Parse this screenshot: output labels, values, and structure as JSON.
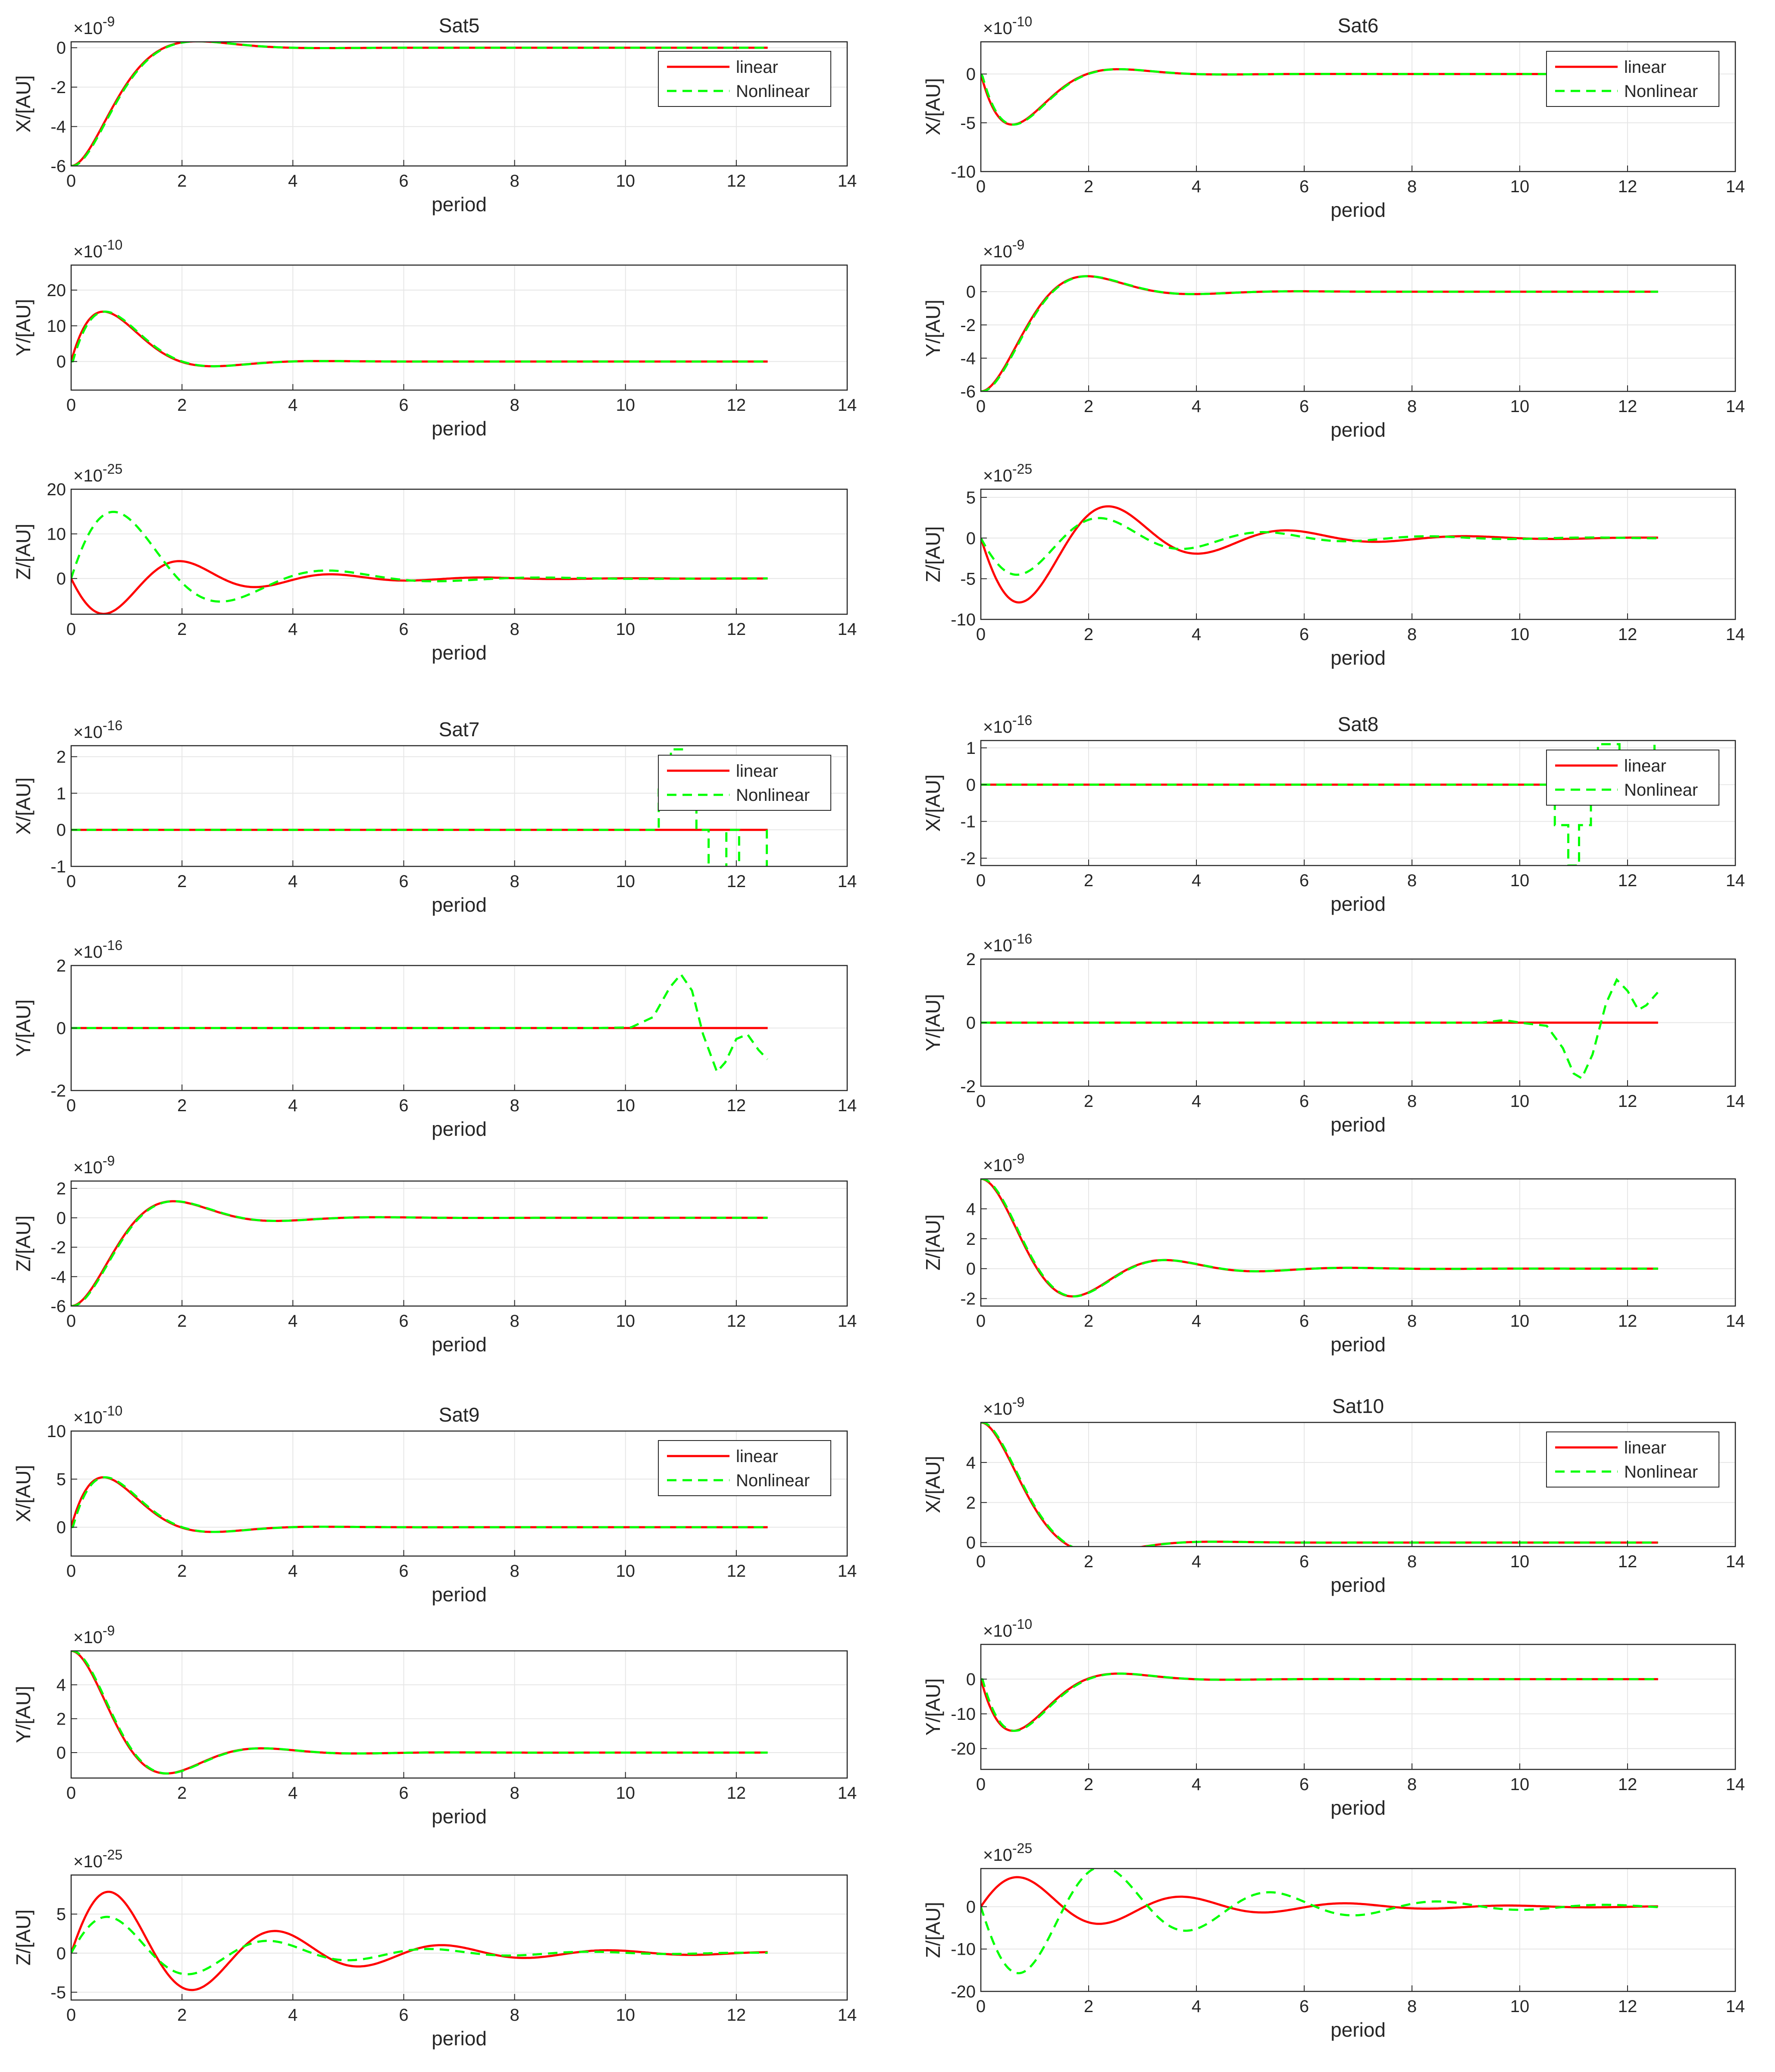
{
  "figure": {
    "xlabel": "period",
    "legend": {
      "linear": "linear",
      "nonlinear": "Nonlinear"
    },
    "colors": {
      "linear": "#ff0000",
      "nonlinear": "#00ff00",
      "axis": "#262626",
      "grid": "#e6e6e6"
    }
  },
  "chart_data": [
    {
      "id": "sat5-x",
      "type": "line",
      "title": "Sat5",
      "ylabel": "X/[AU]",
      "exponent": "-9",
      "xlim": [
        0,
        14
      ],
      "ylim": [
        -6,
        0.3
      ],
      "xticks": [
        0,
        2,
        4,
        6,
        8,
        10,
        12,
        14
      ],
      "yticks": [
        -6,
        -4,
        -2,
        0
      ],
      "legend": "top-right",
      "linear": {
        "kind": "damped",
        "A": 6,
        "omega": 1.88,
        "zeta": 0.68,
        "init": "-cos",
        "scale": 1,
        "tend": 12.566
      },
      "nonlinear": {
        "kind": "damped",
        "A": 6,
        "omega": 1.88,
        "zeta": 0.68,
        "init": "-cos",
        "scale": 1,
        "shift": 0.02,
        "tend": 12.566
      }
    },
    {
      "id": "sat5-y",
      "type": "line",
      "title": "",
      "ylabel": "Y/[AU]",
      "exponent": "-10",
      "xlim": [
        0,
        14
      ],
      "ylim": [
        -8,
        27
      ],
      "xticks": [
        0,
        2,
        4,
        6,
        8,
        10,
        12,
        14
      ],
      "yticks": [
        0,
        10,
        20
      ],
      "linear": {
        "kind": "damped",
        "A": 35,
        "omega": 1.99,
        "zeta": 0.6,
        "init": "sin",
        "scale": 1,
        "tend": 12.566
      },
      "nonlinear": {
        "kind": "damped",
        "A": 35,
        "omega": 1.99,
        "zeta": 0.6,
        "init": "sin",
        "scale": 1,
        "shift": 0.03,
        "tend": 12.566
      }
    },
    {
      "id": "sat5-z",
      "type": "line",
      "title": "",
      "ylabel": "Z/[AU]",
      "exponent": "-25",
      "xlim": [
        0,
        14
      ],
      "ylim": [
        -8,
        20
      ],
      "xticks": [
        0,
        2,
        4,
        6,
        8,
        10,
        12,
        14
      ],
      "yticks": [
        0,
        10,
        20
      ],
      "linear": {
        "kind": "damped",
        "A": 11,
        "omega": 2.36,
        "zeta": 0.22,
        "init": "-sin",
        "scale": 1,
        "tend": 12.566
      },
      "nonlinear": {
        "kind": "damped",
        "A": 24,
        "omega": 1.72,
        "zeta": 0.32,
        "init": "sin",
        "scale": 1,
        "tend": 12.566
      }
    },
    {
      "id": "sat6-x",
      "type": "line",
      "title": "Sat6",
      "ylabel": "X/[AU]",
      "exponent": "-10",
      "xlim": [
        0,
        14
      ],
      "ylim": [
        -10,
        3.3
      ],
      "xticks": [
        0,
        2,
        4,
        6,
        8,
        10,
        12,
        14
      ],
      "yticks": [
        -10,
        -5,
        0
      ],
      "legend": "top-right",
      "linear": {
        "kind": "damped",
        "A": 13,
        "omega": 1.99,
        "zeta": 0.6,
        "init": "-sin",
        "scale": 1,
        "tend": 12.566
      },
      "nonlinear": {
        "kind": "damped",
        "A": 13,
        "omega": 1.99,
        "zeta": 0.6,
        "init": "-sin",
        "scale": 1,
        "shift": 0.02,
        "tend": 12.566
      }
    },
    {
      "id": "sat6-y",
      "type": "line",
      "title": "",
      "ylabel": "Y/[AU]",
      "exponent": "-9",
      "xlim": [
        0,
        14
      ],
      "ylim": [
        -6,
        1.6
      ],
      "xticks": [
        0,
        2,
        4,
        6,
        8,
        10,
        12,
        14
      ],
      "yticks": [
        -6,
        -4,
        -2,
        0
      ],
      "linear": {
        "kind": "damped",
        "A": 6,
        "omega": 1.86,
        "zeta": 0.51,
        "init": "-cos",
        "scale": 1,
        "tend": 12.566
      },
      "nonlinear": {
        "kind": "damped",
        "A": 6,
        "omega": 1.86,
        "zeta": 0.51,
        "init": "-cos",
        "scale": 1,
        "shift": 0.02,
        "tend": 12.566
      }
    },
    {
      "id": "sat6-z",
      "type": "line",
      "title": "",
      "ylabel": "Z/[AU]",
      "exponent": "-25",
      "xlim": [
        0,
        14
      ],
      "ylim": [
        -10,
        6
      ],
      "xticks": [
        0,
        2,
        4,
        6,
        8,
        10,
        12,
        14
      ],
      "yticks": [
        -10,
        -5,
        0,
        5
      ],
      "linear": {
        "kind": "damped",
        "A": 11,
        "omega": 1.95,
        "zeta": 0.22,
        "init": "-sin",
        "scale": 1,
        "tend": 12.566
      },
      "nonlinear": {
        "kind": "damped",
        "A": 6,
        "omega": 2.1,
        "zeta": 0.19,
        "init": "-sin",
        "scale": 1,
        "tend": 12.566
      }
    },
    {
      "id": "sat7-x",
      "type": "line",
      "title": "Sat7",
      "ylabel": "X/[AU]",
      "exponent": "-16",
      "xlim": [
        0,
        14
      ],
      "ylim": [
        -1,
        2.3
      ],
      "xticks": [
        0,
        2,
        4,
        6,
        8,
        10,
        12,
        14
      ],
      "yticks": [
        -1,
        0,
        1,
        2
      ],
      "legend": "top-right",
      "linear": {
        "kind": "zero",
        "tend": 12.566
      },
      "nonlinear": {
        "kind": "steps",
        "tend": 12.566,
        "points": [
          [
            0,
            0
          ],
          [
            10.6,
            0
          ],
          [
            10.6,
            1.1
          ],
          [
            10.82,
            1.1
          ],
          [
            10.82,
            2.2
          ],
          [
            11.05,
            2.2
          ],
          [
            11.05,
            1.1
          ],
          [
            11.28,
            1.1
          ],
          [
            11.28,
            0
          ],
          [
            11.5,
            0
          ],
          [
            11.5,
            -1.1
          ],
          [
            11.82,
            -1.1
          ],
          [
            11.82,
            0
          ],
          [
            12.05,
            0
          ],
          [
            12.05,
            -1.1
          ],
          [
            12.55,
            -1.1
          ],
          [
            12.55,
            0
          ]
        ]
      }
    },
    {
      "id": "sat7-y",
      "type": "line",
      "title": "",
      "ylabel": "Y/[AU]",
      "exponent": "-16",
      "xlim": [
        0,
        14
      ],
      "ylim": [
        -2,
        2
      ],
      "xticks": [
        0,
        2,
        4,
        6,
        8,
        10,
        12,
        14
      ],
      "yticks": [
        -2,
        0,
        2
      ],
      "linear": {
        "kind": "zero",
        "tend": 12.566
      },
      "nonlinear": {
        "kind": "points",
        "tend": 12.566,
        "points": [
          [
            0,
            0
          ],
          [
            9.5,
            0
          ],
          [
            10.1,
            0.02
          ],
          [
            10.5,
            0.35
          ],
          [
            10.8,
            1.3
          ],
          [
            11.0,
            1.72
          ],
          [
            11.2,
            1.2
          ],
          [
            11.4,
            -0.2
          ],
          [
            11.65,
            -1.4
          ],
          [
            11.8,
            -1.1
          ],
          [
            12.0,
            -0.35
          ],
          [
            12.2,
            -0.2
          ],
          [
            12.4,
            -0.7
          ],
          [
            12.56,
            -1.0
          ]
        ]
      }
    },
    {
      "id": "sat7-z",
      "type": "line",
      "title": "",
      "ylabel": "Z/[AU]",
      "exponent": "-9",
      "xlim": [
        0,
        14
      ],
      "ylim": [
        -6,
        2.5
      ],
      "xticks": [
        0,
        2,
        4,
        6,
        8,
        10,
        12,
        14
      ],
      "yticks": [
        -6,
        -4,
        -2,
        0,
        2
      ],
      "linear": {
        "kind": "damped",
        "A": 6,
        "omega": 1.93,
        "zeta": 0.47,
        "init": "-cos",
        "scale": 1,
        "tend": 12.566
      },
      "nonlinear": {
        "kind": "damped",
        "A": 6,
        "omega": 1.93,
        "zeta": 0.47,
        "init": "-cos",
        "scale": 1,
        "shift": 0.02,
        "tend": 12.566
      }
    },
    {
      "id": "sat8-x",
      "type": "line",
      "title": "Sat8",
      "ylabel": "X/[AU]",
      "exponent": "-16",
      "xlim": [
        0,
        14
      ],
      "ylim": [
        -2.2,
        1.2
      ],
      "xticks": [
        0,
        2,
        4,
        6,
        8,
        10,
        12,
        14
      ],
      "yticks": [
        -2,
        -1,
        0,
        1
      ],
      "legend": "top-right",
      "linear": {
        "kind": "zero",
        "tend": 12.566
      },
      "nonlinear": {
        "kind": "steps",
        "tend": 12.566,
        "points": [
          [
            0,
            0
          ],
          [
            10.65,
            0
          ],
          [
            10.65,
            -1.1
          ],
          [
            10.9,
            -1.1
          ],
          [
            10.9,
            -2.2
          ],
          [
            11.1,
            -2.2
          ],
          [
            11.1,
            -1.1
          ],
          [
            11.32,
            -1.1
          ],
          [
            11.32,
            0
          ],
          [
            11.45,
            0
          ],
          [
            11.45,
            1.1
          ],
          [
            11.85,
            1.1
          ],
          [
            11.85,
            0
          ],
          [
            12.5,
            0
          ],
          [
            12.5,
            1.1
          ]
        ]
      }
    },
    {
      "id": "sat8-y",
      "type": "line",
      "title": "",
      "ylabel": "Y/[AU]",
      "exponent": "-16",
      "xlim": [
        0,
        14
      ],
      "ylim": [
        -2,
        2
      ],
      "xticks": [
        0,
        2,
        4,
        6,
        8,
        10,
        12,
        14
      ],
      "yticks": [
        -2,
        0,
        2
      ],
      "linear": {
        "kind": "zero",
        "tend": 12.566
      },
      "nonlinear": {
        "kind": "points",
        "tend": 12.566,
        "points": [
          [
            0,
            0
          ],
          [
            9.3,
            0
          ],
          [
            9.7,
            0.08
          ],
          [
            10.1,
            -0.02
          ],
          [
            10.5,
            -0.1
          ],
          [
            10.8,
            -0.8
          ],
          [
            11.0,
            -1.6
          ],
          [
            11.15,
            -1.75
          ],
          [
            11.35,
            -1.0
          ],
          [
            11.6,
            0.6
          ],
          [
            11.8,
            1.35
          ],
          [
            12.0,
            1.0
          ],
          [
            12.2,
            0.4
          ],
          [
            12.35,
            0.55
          ],
          [
            12.56,
            0.95
          ]
        ]
      }
    },
    {
      "id": "sat8-z",
      "type": "line",
      "title": "",
      "ylabel": "Z/[AU]",
      "exponent": "-9",
      "xlim": [
        0,
        14
      ],
      "ylim": [
        -2.5,
        6
      ],
      "xticks": [
        0,
        2,
        4,
        6,
        8,
        10,
        12,
        14
      ],
      "yticks": [
        -2,
        0,
        2,
        4
      ],
      "linear": {
        "kind": "damped",
        "A": 6,
        "omega": 1.97,
        "zeta": 0.35,
        "init": "cos",
        "scale": 1,
        "tend": 12.566
      },
      "nonlinear": {
        "kind": "damped",
        "A": 6,
        "omega": 1.97,
        "zeta": 0.35,
        "init": "cos",
        "scale": 1,
        "shift": 0.02,
        "tend": 12.566
      }
    },
    {
      "id": "sat9-x",
      "type": "line",
      "title": "Sat9",
      "ylabel": "X/[AU]",
      "exponent": "-10",
      "xlim": [
        0,
        14
      ],
      "ylim": [
        -3,
        10
      ],
      "xticks": [
        0,
        2,
        4,
        6,
        8,
        10,
        12,
        14
      ],
      "yticks": [
        0,
        5,
        10
      ],
      "legend": "top-right",
      "linear": {
        "kind": "damped",
        "A": 13,
        "omega": 1.99,
        "zeta": 0.6,
        "init": "sin",
        "scale": 1,
        "tend": 12.566
      },
      "nonlinear": {
        "kind": "damped",
        "A": 13,
        "omega": 1.99,
        "zeta": 0.6,
        "init": "sin",
        "scale": 1,
        "shift": 0.03,
        "tend": 12.566
      }
    },
    {
      "id": "sat9-y",
      "type": "line",
      "title": "",
      "ylabel": "Y/[AU]",
      "exponent": "-9",
      "xlim": [
        0,
        14
      ],
      "ylim": [
        -1.5,
        6
      ],
      "xticks": [
        0,
        2,
        4,
        6,
        8,
        10,
        12,
        14
      ],
      "yticks": [
        0,
        2,
        4
      ],
      "linear": {
        "kind": "damped",
        "A": 6,
        "omega": 2.05,
        "zeta": 0.45,
        "init": "cos",
        "scale": 1,
        "tend": 12.566
      },
      "nonlinear": {
        "kind": "damped",
        "A": 6,
        "omega": 2.05,
        "zeta": 0.45,
        "init": "cos",
        "scale": 1,
        "shift": 0.02,
        "tend": 12.566
      }
    },
    {
      "id": "sat9-z",
      "type": "line",
      "title": "",
      "ylabel": "Z/[AU]",
      "exponent": "-25",
      "xlim": [
        0,
        14
      ],
      "ylim": [
        -6,
        10
      ],
      "xticks": [
        0,
        2,
        4,
        6,
        8,
        10,
        12,
        14
      ],
      "yticks": [
        -5,
        0,
        5
      ],
      "linear": {
        "kind": "damped",
        "A": 10,
        "omega": 2.12,
        "zeta": 0.16,
        "init": "sin",
        "scale": 1,
        "tend": 12.566
      },
      "nonlinear": {
        "kind": "damped",
        "A": 6,
        "omega": 2.2,
        "zeta": 0.17,
        "init": "sin",
        "scale": 1,
        "tend": 12.566
      }
    },
    {
      "id": "sat10-x",
      "type": "line",
      "title": "Sat10",
      "ylabel": "X/[AU]",
      "exponent": "-9",
      "xlim": [
        0,
        14
      ],
      "ylim": [
        -0.2,
        6
      ],
      "xticks": [
        0,
        2,
        4,
        6,
        8,
        10,
        12,
        14
      ],
      "yticks": [
        0,
        2,
        4
      ],
      "legend": "top-right",
      "linear": {
        "kind": "damped",
        "A": 6,
        "omega": 1.85,
        "zeta": 0.62,
        "init": "cos",
        "scale": 1,
        "tend": 12.566
      },
      "nonlinear": {
        "kind": "damped",
        "A": 6,
        "omega": 1.85,
        "zeta": 0.62,
        "init": "cos",
        "scale": 1,
        "shift": 0.02,
        "tend": 12.566
      }
    },
    {
      "id": "sat10-y",
      "type": "line",
      "title": "",
      "ylabel": "Y/[AU]",
      "exponent": "-10",
      "xlim": [
        0,
        14
      ],
      "ylim": [
        -26,
        10
      ],
      "xticks": [
        0,
        2,
        4,
        6,
        8,
        10,
        12,
        14
      ],
      "yticks": [
        -20,
        -10,
        0
      ],
      "linear": {
        "kind": "damped",
        "A": 36,
        "omega": 1.96,
        "zeta": 0.58,
        "init": "-sin",
        "scale": 1,
        "tend": 12.566
      },
      "nonlinear": {
        "kind": "damped",
        "A": 36,
        "omega": 1.96,
        "zeta": 0.58,
        "init": "-sin",
        "scale": 1,
        "shift": 0.03,
        "tend": 12.566
      }
    },
    {
      "id": "sat10-z",
      "type": "line",
      "title": "",
      "ylabel": "Z/[AU]",
      "exponent": "-25",
      "xlim": [
        0,
        14
      ],
      "ylim": [
        -20,
        9
      ],
      "xticks": [
        0,
        2,
        4,
        6,
        8,
        10,
        12,
        14
      ],
      "yticks": [
        -20,
        -10,
        0
      ],
      "linear": {
        "kind": "damped",
        "A": 9,
        "omega": 2.1,
        "zeta": 0.17,
        "init": "sin",
        "scale": 1,
        "tend": 12.566
      },
      "nonlinear": {
        "kind": "damped",
        "A": 20,
        "omega": 2.05,
        "zeta": 0.16,
        "init": "-sin",
        "scale": 1,
        "tend": 12.566
      }
    }
  ]
}
